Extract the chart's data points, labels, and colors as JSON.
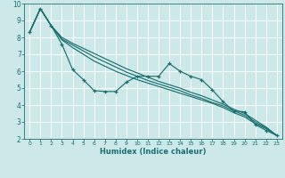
{
  "xlabel": "Humidex (Indice chaleur)",
  "bg_color": "#cce8e8",
  "grid_color": "#ffffff",
  "line_color": "#1a7070",
  "xlim": [
    -0.5,
    23.5
  ],
  "ylim": [
    2,
    10
  ],
  "xticks": [
    0,
    1,
    2,
    3,
    4,
    5,
    6,
    7,
    8,
    9,
    10,
    11,
    12,
    13,
    14,
    15,
    16,
    17,
    18,
    19,
    20,
    21,
    22,
    23
  ],
  "yticks": [
    2,
    3,
    4,
    5,
    6,
    7,
    8,
    9,
    10
  ],
  "line_zigzag_x": [
    0,
    1,
    2,
    3,
    4,
    5,
    6,
    7,
    8,
    9,
    10,
    11,
    12,
    13,
    14,
    15,
    16,
    17,
    18,
    19,
    20,
    21,
    22,
    23
  ],
  "line_zigzag_y": [
    8.3,
    9.7,
    8.7,
    7.6,
    6.1,
    5.5,
    4.85,
    4.8,
    4.8,
    5.35,
    5.7,
    5.7,
    5.7,
    6.45,
    6.0,
    5.7,
    5.5,
    4.9,
    4.2,
    3.65,
    3.6,
    2.85,
    2.5,
    2.2
  ],
  "line_reg1_x": [
    0,
    1,
    2,
    3,
    4,
    5,
    6,
    7,
    8,
    9,
    10,
    11,
    12,
    13,
    14,
    15,
    16,
    17,
    18,
    19,
    20,
    21,
    22,
    23
  ],
  "line_reg1_y": [
    8.3,
    9.7,
    8.7,
    7.85,
    7.4,
    7.0,
    6.6,
    6.3,
    6.0,
    5.75,
    5.5,
    5.3,
    5.1,
    4.9,
    4.7,
    4.5,
    4.3,
    4.1,
    3.85,
    3.55,
    3.3,
    2.9,
    2.6,
    2.2
  ],
  "line_reg2_x": [
    0,
    1,
    2,
    3,
    4,
    5,
    6,
    7,
    8,
    9,
    10,
    11,
    12,
    13,
    14,
    15,
    16,
    17,
    18,
    19,
    20,
    21,
    22,
    23
  ],
  "line_reg2_y": [
    8.3,
    9.7,
    8.7,
    7.9,
    7.55,
    7.2,
    6.85,
    6.55,
    6.25,
    5.95,
    5.7,
    5.45,
    5.25,
    5.05,
    4.85,
    4.6,
    4.4,
    4.15,
    3.95,
    3.65,
    3.4,
    3.0,
    2.65,
    2.2
  ],
  "line_reg3_x": [
    0,
    1,
    2,
    3,
    4,
    5,
    6,
    7,
    8,
    9,
    10,
    11,
    12,
    13,
    14,
    15,
    16,
    17,
    18,
    19,
    20,
    21,
    22,
    23
  ],
  "line_reg3_y": [
    8.3,
    9.7,
    8.7,
    8.0,
    7.65,
    7.35,
    7.05,
    6.75,
    6.45,
    6.15,
    5.9,
    5.65,
    5.4,
    5.2,
    5.0,
    4.75,
    4.55,
    4.3,
    4.05,
    3.75,
    3.5,
    3.1,
    2.7,
    2.2
  ]
}
